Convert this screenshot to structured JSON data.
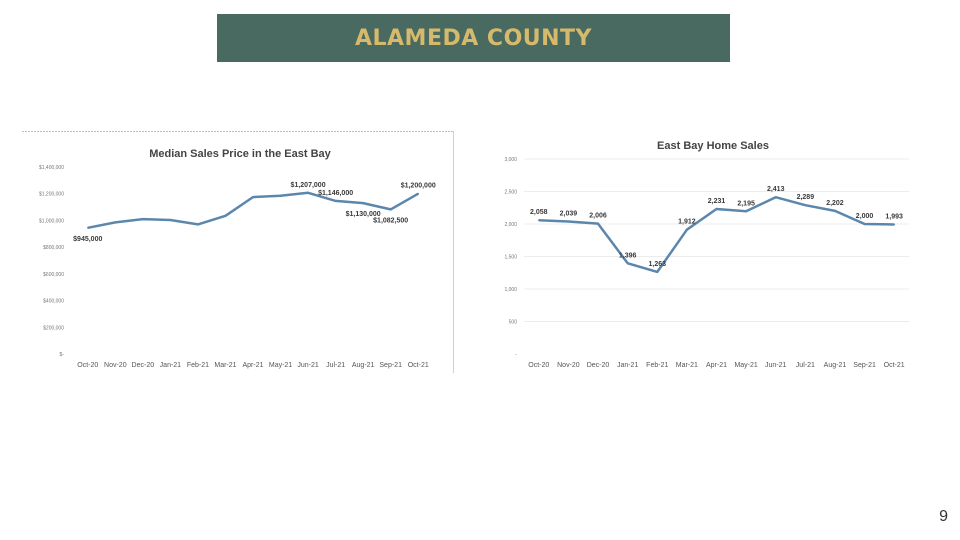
{
  "slide": {
    "title": "ALAMEDA COUNTY",
    "page_number": "9",
    "colors": {
      "banner_bg": "#496a60",
      "banner_text": "#d7b96b",
      "line": "#5b87ad"
    }
  },
  "chart_data": [
    {
      "type": "line",
      "title": "Median Sales Price in the East Bay",
      "categories": [
        "Oct-20",
        "Nov-20",
        "Dec-20",
        "Jan-21",
        "Feb-21",
        "Mar-21",
        "Apr-21",
        "May-21",
        "Jun-21",
        "Jul-21",
        "Aug-21",
        "Sep-21",
        "Oct-21"
      ],
      "values": [
        945000,
        985000,
        1010000,
        1003000,
        970000,
        1035000,
        1175000,
        1185000,
        1207000,
        1146000,
        1130000,
        1082500,
        1200000
      ],
      "ylim": [
        0,
        1400000
      ],
      "yticks": [
        "$-",
        "$200,000",
        "$400,000",
        "$600,000",
        "$800,000",
        "$1,000,000",
        "$1,200,000",
        "$1,400,000"
      ],
      "data_labels": [
        {
          "index": 0,
          "text": "$945,000",
          "position": "below"
        },
        {
          "index": 8,
          "text": "$1,207,000",
          "position": "above"
        },
        {
          "index": 9,
          "text": "$1,146,000",
          "position": "above"
        },
        {
          "index": 10,
          "text": "$1,130,000",
          "position": "below"
        },
        {
          "index": 11,
          "text": "$1,082,500",
          "position": "below"
        },
        {
          "index": 12,
          "text": "$1,200,000",
          "position": "above"
        }
      ]
    },
    {
      "type": "line",
      "title": "East Bay Home Sales",
      "categories": [
        "Oct-20",
        "Nov-20",
        "Dec-20",
        "Jan-21",
        "Feb-21",
        "Mar-21",
        "Apr-21",
        "May-21",
        "Jun-21",
        "Jul-21",
        "Aug-21",
        "Sep-21",
        "Oct-21"
      ],
      "values": [
        2058,
        2039,
        2006,
        1396,
        1263,
        1912,
        2231,
        2195,
        2413,
        2289,
        2202,
        2000,
        1993
      ],
      "ylim": [
        0,
        3000
      ],
      "yticks": [
        "-",
        "500",
        "1,000",
        "1,500",
        "2,000",
        "2,500",
        "3,000"
      ],
      "data_labels": [
        {
          "index": 0,
          "text": "2,058",
          "position": "above"
        },
        {
          "index": 1,
          "text": "2,039",
          "position": "above"
        },
        {
          "index": 2,
          "text": "2,006",
          "position": "above"
        },
        {
          "index": 3,
          "text": "1,396",
          "position": "above"
        },
        {
          "index": 4,
          "text": "1,263",
          "position": "above"
        },
        {
          "index": 5,
          "text": "1,912",
          "position": "above"
        },
        {
          "index": 6,
          "text": "2,231",
          "position": "above"
        },
        {
          "index": 7,
          "text": "2,195",
          "position": "above"
        },
        {
          "index": 8,
          "text": "2,413",
          "position": "above"
        },
        {
          "index": 9,
          "text": "2,289",
          "position": "above"
        },
        {
          "index": 10,
          "text": "2,202",
          "position": "above"
        },
        {
          "index": 11,
          "text": "2,000",
          "position": "above"
        },
        {
          "index": 12,
          "text": "1,993",
          "position": "above"
        }
      ]
    }
  ]
}
